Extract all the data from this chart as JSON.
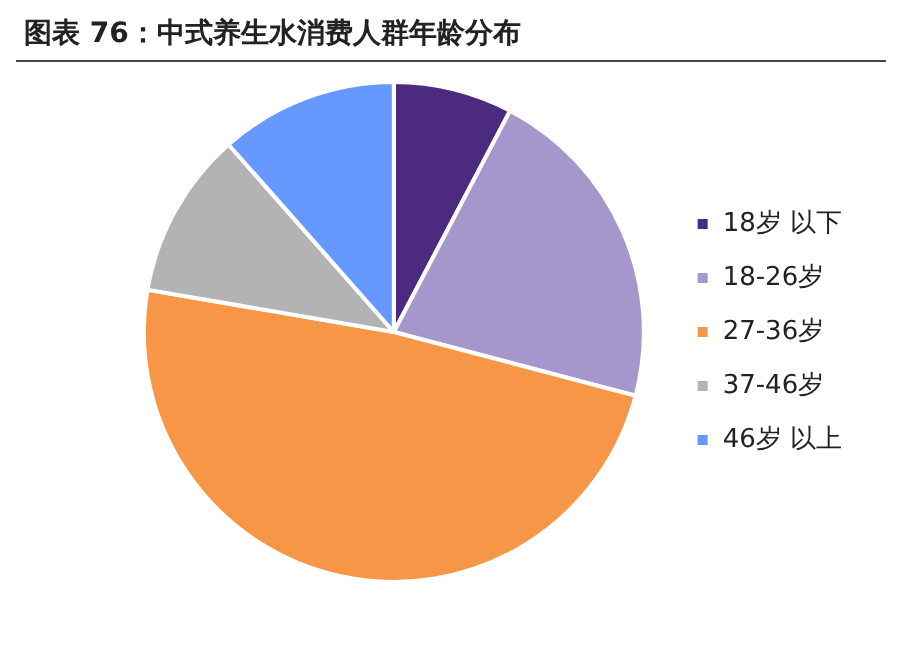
{
  "chart_data": {
    "type": "pie",
    "title": "图表 76：中式养生水消费人群年龄分布",
    "categories": [
      "18岁 以下",
      "18-26岁",
      "27-36岁",
      "37-46岁",
      "46岁 以上"
    ],
    "values": [
      7.7,
      21.4,
      48.6,
      10.8,
      11.5
    ],
    "colors": [
      "#4b2a7f",
      "#a597cc",
      "#f79646",
      "#b3b3b3",
      "#6699ff"
    ],
    "legend": "right"
  }
}
